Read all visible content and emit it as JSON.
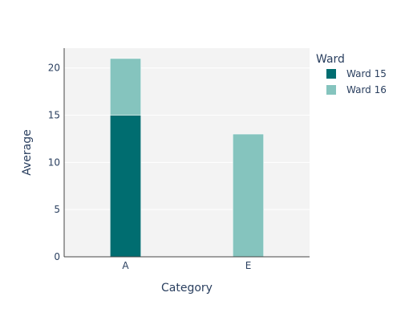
{
  "chart_data": {
    "type": "bar",
    "barmode": "stack",
    "categories": [
      "A",
      "E"
    ],
    "series": [
      {
        "name": "Ward 15",
        "values": [
          15,
          null
        ],
        "color": "#006d70"
      },
      {
        "name": "Ward 16",
        "values": [
          6,
          13
        ],
        "color": "#85c4be"
      }
    ],
    "xlabel": "Category",
    "ylabel": "Average",
    "ylim": [
      0,
      22.1
    ],
    "yticks": [
      0,
      5,
      10,
      15,
      20
    ],
    "grid": true,
    "legend_title": "Ward",
    "legend_position": "top-right",
    "plot_background": "#f3f3f3"
  }
}
